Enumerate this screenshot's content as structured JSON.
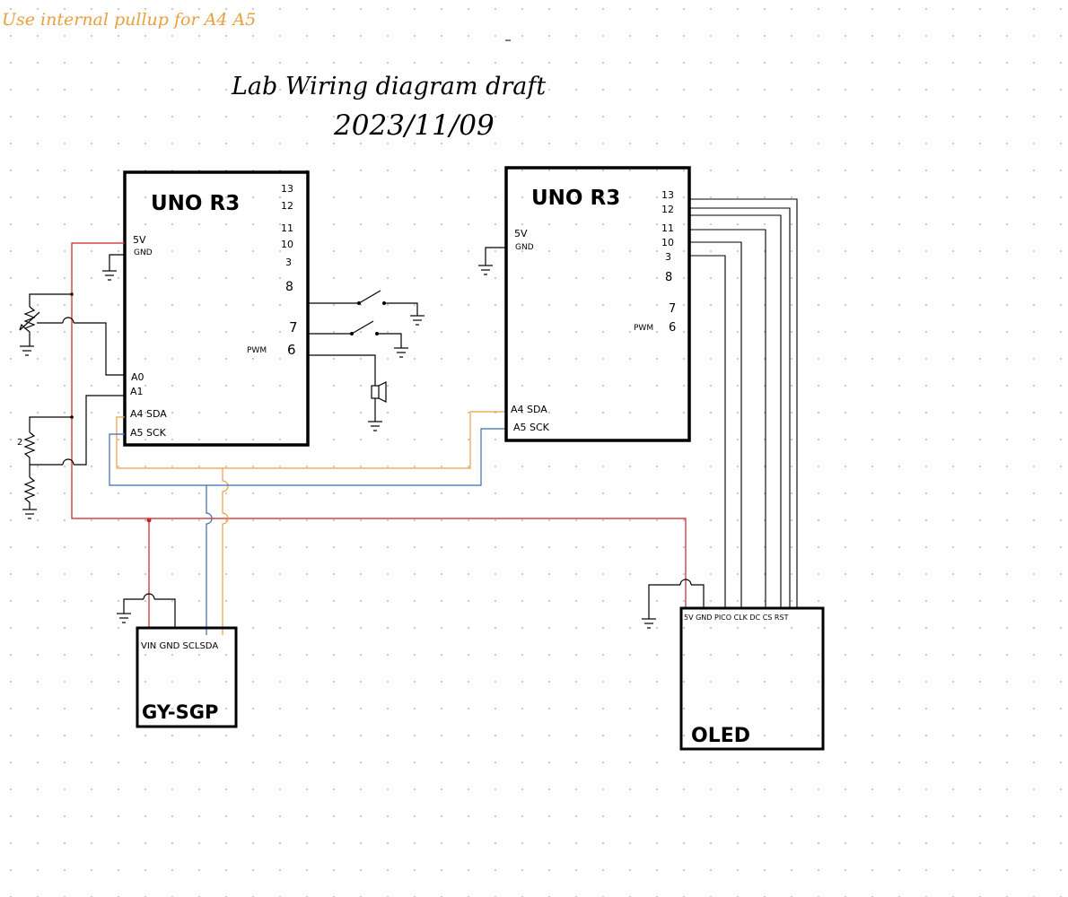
{
  "note": "Use internal pullup for A4 A5",
  "title": {
    "line1": "Lab Wiring diagram draft",
    "line2": "2023/11/09"
  },
  "uno_left": {
    "name": "UNO R3",
    "pins_right": [
      "13",
      "12",
      "11",
      "10",
      "3",
      "8",
      "7",
      "6"
    ],
    "pwm": "PWM",
    "pins_left": {
      "v5": "5V",
      "gnd": "GND",
      "a0": "A0",
      "a1": "A1",
      "a4": "A4 SDA",
      "a5": "A5 SCK"
    }
  },
  "uno_right": {
    "name": "UNO R3",
    "pins_right": [
      "13",
      "12",
      "11",
      "10",
      "3",
      "8",
      "7",
      "6"
    ],
    "pwm": "PWM",
    "pins_left": {
      "v5": "5V",
      "gnd": "GND",
      "a4": "A4 SDA",
      "a5": "A5 SCK"
    }
  },
  "sensor": {
    "name": "GY-SGP",
    "pins": "VIN GND  SCLSDA"
  },
  "oled": {
    "name": "OLED",
    "pins": "5V GND PICO CLK DC CS RST"
  },
  "colors": {
    "power": "#cc2222",
    "sda": "#e8a040",
    "scl": "#3a6bb0",
    "ink": "#000000",
    "note": "#e8a040"
  }
}
